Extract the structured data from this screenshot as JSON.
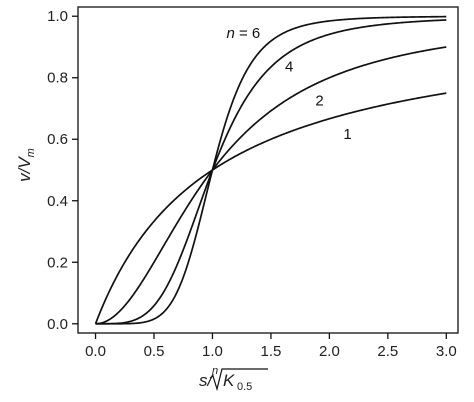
{
  "chart_data": {
    "type": "line",
    "xlabel": "s/ⁿ√K0.5",
    "xlabel_parts": {
      "main": "s/",
      "root_index": "n",
      "radicand": "K",
      "subscript": "0.5"
    },
    "ylabel": "v/Vm",
    "ylabel_parts": {
      "v": "v/V",
      "subscript": "m"
    },
    "xlim": [
      -0.15,
      3.1
    ],
    "ylim": [
      -0.03,
      1.03
    ],
    "xticks": [
      0.0,
      0.5,
      1.0,
      1.5,
      2.0,
      2.5,
      3.0
    ],
    "xtick_labels": [
      "0.0",
      "0.5",
      "1.0",
      "1.5",
      "2.0",
      "2.5",
      "3.0"
    ],
    "yticks": [
      0.0,
      0.2,
      0.4,
      0.6,
      0.8,
      1.0
    ],
    "ytick_labels": [
      "0.0",
      "0.2",
      "0.4",
      "0.6",
      "0.8",
      "1.0"
    ],
    "grid": false,
    "function": "v/Vm = x^n / (1 + x^n)",
    "series": [
      {
        "name": "1",
        "n": 1,
        "x": [
          0,
          0.25,
          0.5,
          0.75,
          1.0,
          1.5,
          2.0,
          2.5,
          3.0
        ],
        "y": [
          0,
          0.2,
          0.333,
          0.429,
          0.5,
          0.6,
          0.667,
          0.714,
          0.75
        ]
      },
      {
        "name": "2",
        "n": 2,
        "x": [
          0,
          0.25,
          0.5,
          0.75,
          1.0,
          1.5,
          2.0,
          2.5,
          3.0
        ],
        "y": [
          0,
          0.059,
          0.2,
          0.36,
          0.5,
          0.692,
          0.8,
          0.862,
          0.9
        ]
      },
      {
        "name": "4",
        "n": 4,
        "x": [
          0,
          0.25,
          0.5,
          0.75,
          1.0,
          1.5,
          2.0,
          2.5,
          3.0
        ],
        "y": [
          0,
          0.004,
          0.059,
          0.24,
          0.5,
          0.835,
          0.941,
          0.975,
          0.988
        ]
      },
      {
        "name": "n = 6",
        "n": 6,
        "x": [
          0,
          0.25,
          0.5,
          0.75,
          1.0,
          1.5,
          2.0,
          2.5,
          3.0
        ],
        "y": [
          0,
          0.0,
          0.015,
          0.151,
          0.5,
          0.919,
          0.985,
          0.996,
          0.999
        ]
      }
    ],
    "annotations": [
      {
        "series": "n = 6",
        "text": "n = 6",
        "n_text": "n",
        "eq_text": " = 6",
        "x": 1.12,
        "y": 0.93
      },
      {
        "series": "4",
        "text": "4",
        "x": 1.62,
        "y": 0.82
      },
      {
        "series": "2",
        "text": "2",
        "x": 1.88,
        "y": 0.71
      },
      {
        "series": "1",
        "text": "1",
        "x": 2.12,
        "y": 0.6
      }
    ]
  }
}
